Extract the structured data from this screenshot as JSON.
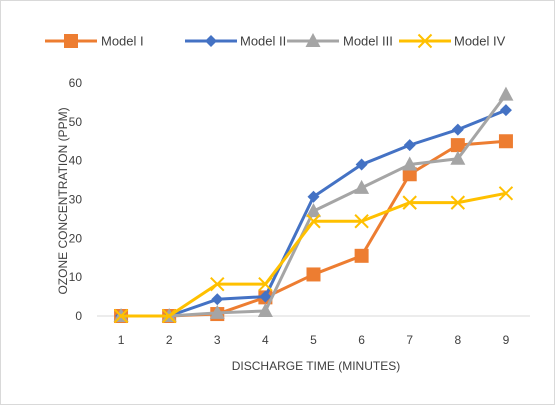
{
  "chart_data": {
    "type": "line",
    "xlabel": "DISCHARGE TIME (MINUTES)",
    "ylabel": "OZONE CONCENTRATION (PPM)",
    "x": [
      1,
      2,
      3,
      4,
      5,
      6,
      7,
      8,
      9
    ],
    "ylim": [
      0,
      60
    ],
    "yticks": [
      0,
      10,
      20,
      30,
      40,
      50,
      60
    ],
    "legend_position": "top",
    "grid": false,
    "series": [
      {
        "name": "Model I",
        "color": "#ED7D31",
        "marker": "square",
        "values": [
          0,
          0,
          0.5,
          4.8,
          10.7,
          15.5,
          36.5,
          44,
          45
        ]
      },
      {
        "name": "Model II",
        "color": "#4472C4",
        "marker": "diamond",
        "values": [
          0,
          0,
          4.3,
          5,
          30.7,
          39,
          44,
          48,
          53
        ]
      },
      {
        "name": "Model III",
        "color": "#A5A5A5",
        "marker": "triangle",
        "values": [
          0,
          0,
          0.8,
          1.3,
          27,
          33,
          39,
          40.5,
          57
        ]
      },
      {
        "name": "Model IV",
        "color": "#FFC000",
        "marker": "x",
        "values": [
          0,
          0,
          8.2,
          8.2,
          24.4,
          24.4,
          29.2,
          29.2,
          31.6
        ]
      }
    ]
  }
}
